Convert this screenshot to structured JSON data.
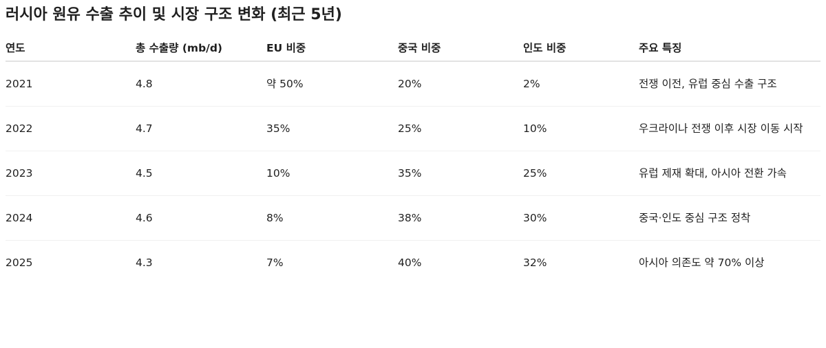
{
  "title": "러시아 원유 수출 추이 및 시장 구조 변화 (최근 5년)",
  "table": {
    "headers": [
      "연도",
      "총 수출량 (mb/d)",
      "EU 비중",
      "중국 비중",
      "인도 비중",
      "주요 특징"
    ],
    "rows": [
      [
        "2021",
        "4.8",
        "약 50%",
        "20%",
        "2%",
        "전쟁 이전, 유럽 중심 수출 구조"
      ],
      [
        "2022",
        "4.7",
        "35%",
        "25%",
        "10%",
        "우크라이나 전쟁 이후 시장 이동 시작"
      ],
      [
        "2023",
        "4.5",
        "10%",
        "35%",
        "25%",
        "유럽 제재 확대, 아시아 전환 가속"
      ],
      [
        "2024",
        "4.6",
        "8%",
        "38%",
        "30%",
        "중국·인도 중심 구조 정착"
      ],
      [
        "2025",
        "4.3",
        "7%",
        "40%",
        "32%",
        "아시아 의존도 약 70% 이상"
      ]
    ]
  }
}
